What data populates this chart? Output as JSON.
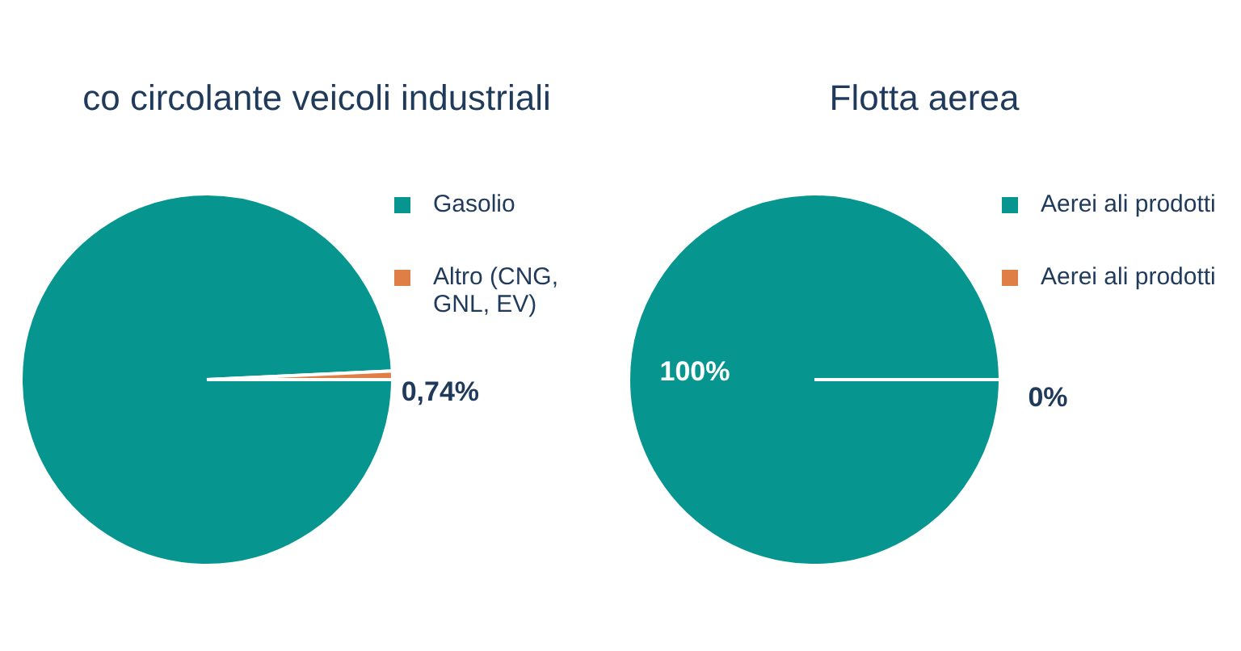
{
  "chart_data": [
    {
      "type": "pie",
      "title": "co circolante veicoli industriali",
      "categories": [
        "Gasolio",
        "Altro (CNG, GNL, EV)"
      ],
      "values": [
        99.26,
        0.74
      ],
      "colors": [
        "#07968f",
        "#e07f45"
      ],
      "value_labels": [
        null,
        "0,74%"
      ],
      "legend": "right"
    },
    {
      "type": "pie",
      "title": "Flotta aerea",
      "categories": [
        "Aerei ali prodotti",
        "Aerei ali prodotti"
      ],
      "values": [
        100,
        0
      ],
      "colors": [
        "#07968f",
        "#e07f45"
      ],
      "value_labels": [
        "100%",
        "0%"
      ],
      "legend": "right"
    }
  ]
}
